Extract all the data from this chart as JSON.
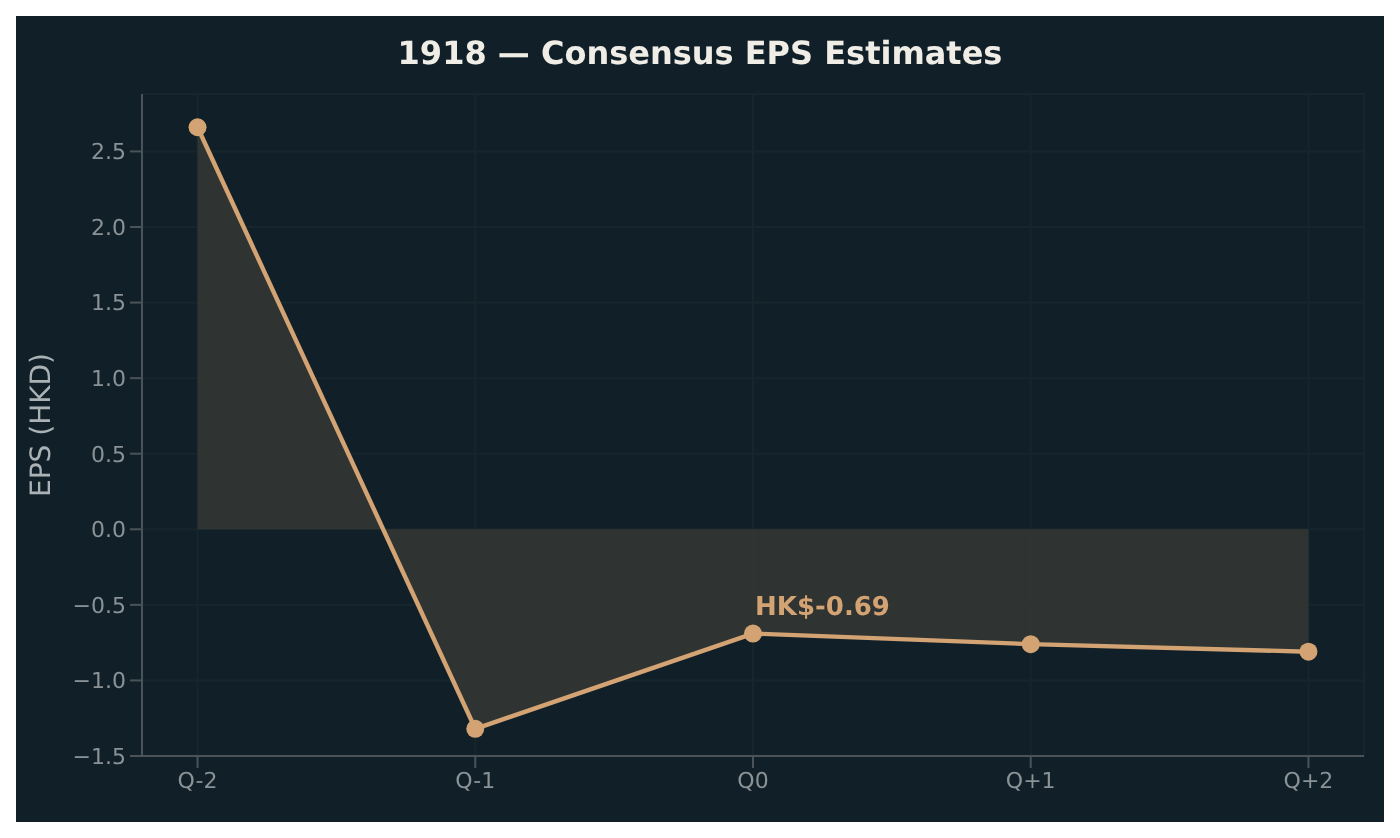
{
  "chart_data": {
    "type": "area",
    "title": "1918 — Consensus EPS Estimates",
    "ylabel": "EPS (HKD)",
    "categories": [
      "Q-2",
      "Q-1",
      "Q0",
      "Q+1",
      "Q+2"
    ],
    "series": [
      {
        "color": "#d4a373",
        "values": [
          2.66,
          -1.32,
          -0.69,
          -0.76,
          -0.81
        ]
      }
    ],
    "ylim": [
      -1.5,
      2.88
    ],
    "yticks": [
      {
        "value": -1.5,
        "label": "−1.5"
      },
      {
        "value": -1,
        "label": "−1.0"
      },
      {
        "value": -0.5,
        "label": "−0.5"
      },
      {
        "value": 0,
        "label": "0.0"
      },
      {
        "value": 0.5,
        "label": "0.5"
      },
      {
        "value": 1,
        "label": "1.0"
      },
      {
        "value": 1.5,
        "label": "1.5"
      },
      {
        "value": 2,
        "label": "2.0"
      },
      {
        "value": 2.5,
        "label": "2.5"
      }
    ],
    "annotations": [
      {
        "text": "HK$-0.69",
        "x": "Q0",
        "y": -0.69
      }
    ],
    "grid": true,
    "marker": "circle",
    "line_style": "solid"
  }
}
